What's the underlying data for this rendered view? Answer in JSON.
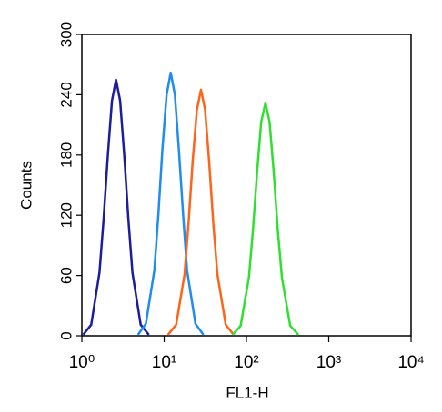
{
  "chart_data": {
    "type": "line",
    "x_label": "FL1-H",
    "y_label": "Counts",
    "xscale": "log",
    "xlim": [
      1,
      10000
    ],
    "xticks": [
      {
        "value": 1,
        "label": "10⁰"
      },
      {
        "value": 10,
        "label": "10¹"
      },
      {
        "value": 100,
        "label": "10²"
      },
      {
        "value": 1000,
        "label": "10³"
      },
      {
        "value": 10000,
        "label": "10⁴"
      }
    ],
    "ylim": [
      0,
      300
    ],
    "yticks": [
      0,
      60,
      120,
      180,
      240,
      300
    ],
    "series": [
      {
        "color": "#1c1ca0",
        "x": [
          1.04,
          1.3,
          1.64,
          1.84,
          2.07,
          2.32,
          2.6,
          2.92,
          3.27,
          3.67,
          4.12,
          5.19,
          6.53
        ],
        "values": [
          1,
          11,
          63,
          117,
          180,
          234,
          255,
          234,
          180,
          117,
          63,
          11,
          1
        ]
      },
      {
        "color": "#1e8cf0",
        "x": [
          4.8,
          6.0,
          7.6,
          8.5,
          9.5,
          10.7,
          12,
          13.5,
          15.1,
          17,
          19,
          24,
          30
        ],
        "values": [
          1,
          12,
          65,
          120,
          185,
          240,
          262,
          240,
          185,
          120,
          65,
          12,
          1
        ]
      },
      {
        "color": "#ff6418",
        "x": [
          11.1,
          14,
          17.7,
          19.8,
          22.2,
          25,
          28,
          31.4,
          35.2,
          39.5,
          44.4,
          56,
          70
        ],
        "values": [
          1,
          11,
          61,
          112,
          173,
          225,
          245,
          225,
          173,
          112,
          61,
          11,
          1
        ]
      },
      {
        "color": "#30e030",
        "x": [
          68,
          85,
          107,
          120,
          135,
          151,
          170,
          191,
          214,
          240,
          270,
          340,
          428
        ],
        "values": [
          1,
          10,
          58,
          106,
          164,
          213,
          232,
          213,
          164,
          106,
          58,
          10,
          1
        ]
      }
    ]
  }
}
